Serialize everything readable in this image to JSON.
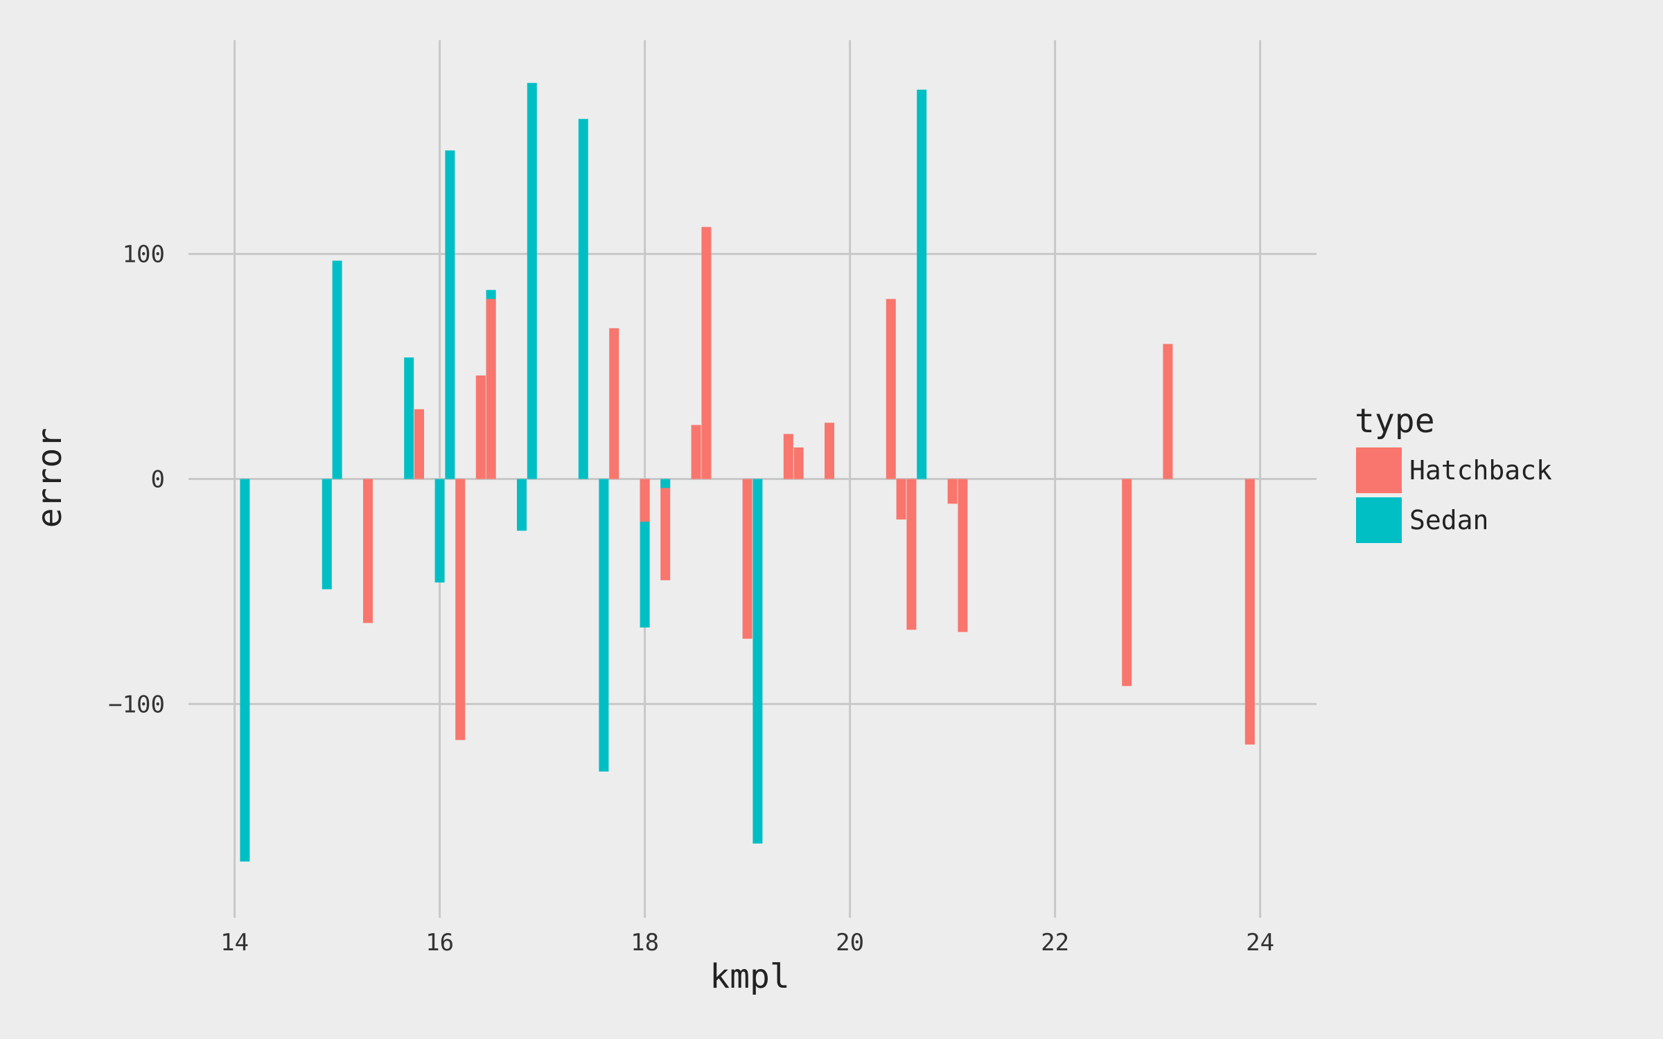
{
  "chart_data": {
    "type": "bar",
    "title": "",
    "xlabel": "kmpl",
    "ylabel": "error",
    "xlim": [
      13.55,
      24.55
    ],
    "ylim": [
      -195,
      195
    ],
    "x_ticks": [
      14,
      16,
      18,
      20,
      22,
      24
    ],
    "y_ticks": [
      -100,
      0,
      100
    ],
    "grid": true,
    "legend": {
      "title": "type",
      "position": "right"
    },
    "series": [
      {
        "name": "Hatchback",
        "color": "#F8766D",
        "points": [
          {
            "x": 15.3,
            "y": -64
          },
          {
            "x": 15.8,
            "y": 31
          },
          {
            "x": 16.2,
            "y": -116
          },
          {
            "x": 16.4,
            "y": 46
          },
          {
            "x": 16.5,
            "y": 80
          },
          {
            "x": 17.7,
            "y": 67
          },
          {
            "x": 18.0,
            "y": -19
          },
          {
            "x": 18.2,
            "y": -45
          },
          {
            "x": 18.5,
            "y": 24
          },
          {
            "x": 18.6,
            "y": 112
          },
          {
            "x": 19.0,
            "y": -71
          },
          {
            "x": 19.4,
            "y": 20
          },
          {
            "x": 19.5,
            "y": 14
          },
          {
            "x": 19.8,
            "y": 25
          },
          {
            "x": 20.4,
            "y": 80
          },
          {
            "x": 20.5,
            "y": -18
          },
          {
            "x": 20.6,
            "y": -67
          },
          {
            "x": 21.0,
            "y": -11
          },
          {
            "x": 21.1,
            "y": -68
          },
          {
            "x": 22.7,
            "y": -92
          },
          {
            "x": 23.1,
            "y": 60
          },
          {
            "x": 23.9,
            "y": -118
          }
        ]
      },
      {
        "name": "Sedan",
        "color": "#00BFC4",
        "points": [
          {
            "x": 14.1,
            "y": -170
          },
          {
            "x": 14.9,
            "y": -49
          },
          {
            "x": 15.0,
            "y": 97
          },
          {
            "x": 15.7,
            "y": 54
          },
          {
            "x": 16.0,
            "y": -46
          },
          {
            "x": 16.1,
            "y": 146
          },
          {
            "x": 16.5,
            "y": 84
          },
          {
            "x": 16.8,
            "y": -23
          },
          {
            "x": 16.9,
            "y": 176
          },
          {
            "x": 17.4,
            "y": 160
          },
          {
            "x": 17.6,
            "y": -130
          },
          {
            "x": 18.0,
            "y": -66
          },
          {
            "x": 18.2,
            "y": -4
          },
          {
            "x": 19.1,
            "y": -162
          },
          {
            "x": 20.7,
            "y": 173
          }
        ]
      }
    ]
  }
}
